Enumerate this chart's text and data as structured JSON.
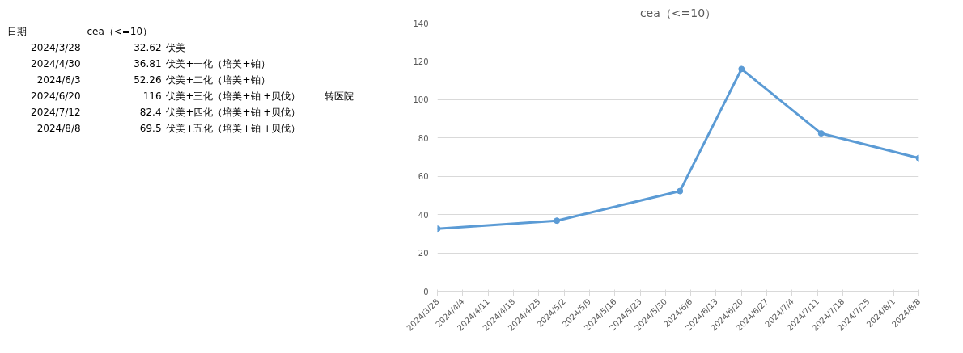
{
  "chart_data": [
    {
      "type": "other",
      "annotations": [
        "日期",
        "cea（<=10）",
        "2024/3/28",
        "32.62",
        "伏美",
        "2024/4/30",
        "36.81",
        "伏美+一化（培美+铂）",
        "2024/6/3",
        "52.26",
        "伏美+二化（培美+铂）",
        "2024/6/20",
        "116",
        "伏美+三化（培美+铂 +贝伐）",
        "转医院",
        "2024/7/12",
        "82.4",
        "伏美+四化（培美+铂 +贝伐）",
        "2024/8/8",
        "69.5",
        "伏美+五化（培美+铂 +贝伐）"
      ]
    },
    {
      "type": "line",
      "title": "cea（<=10）",
      "x": [
        "2024-03-28",
        "2024-04-30",
        "2024-06-03",
        "2024-06-20",
        "2024-07-12",
        "2024-08-08"
      ],
      "series": [
        {
          "color": "#5b9bd5",
          "values": [
            32.62,
            36.81,
            52.26,
            116,
            82.4,
            69.5
          ]
        }
      ],
      "marker": "circle",
      "line_style": "solid",
      "grid": "y",
      "ylim": [
        0,
        140
      ],
      "yticks": [
        0,
        20,
        40,
        60,
        80,
        100,
        120,
        140
      ],
      "xlim": [
        "2024-03-28",
        "2024-08-08"
      ],
      "xticks": [
        {
          "value": "2024-03-28",
          "label": "2024/3/28"
        },
        {
          "value": "2024-04-04",
          "label": "2024/4/4"
        },
        {
          "value": "2024-04-11",
          "label": "2024/4/11"
        },
        {
          "value": "2024-04-18",
          "label": "2024/4/18"
        },
        {
          "value": "2024-04-25",
          "label": "2024/4/25"
        },
        {
          "value": "2024-05-02",
          "label": "2024/5/2"
        },
        {
          "value": "2024-05-09",
          "label": "2024/5/9"
        },
        {
          "value": "2024-05-16",
          "label": "2024/5/16"
        },
        {
          "value": "2024-05-23",
          "label": "2024/5/23"
        },
        {
          "value": "2024-05-30",
          "label": "2024/5/30"
        },
        {
          "value": "2024-06-06",
          "label": "2024/6/6"
        },
        {
          "value": "2024-06-13",
          "label": "2024/6/13"
        },
        {
          "value": "2024-06-20",
          "label": "2024/6/20"
        },
        {
          "value": "2024-06-27",
          "label": "2024/6/27"
        },
        {
          "value": "2024-07-04",
          "label": "2024/7/4"
        },
        {
          "value": "2024-07-11",
          "label": "2024/7/11"
        },
        {
          "value": "2024-07-18",
          "label": "2024/7/18"
        },
        {
          "value": "2024-07-25",
          "label": "2024/7/25"
        },
        {
          "value": "2024-08-01",
          "label": "2024/8/1"
        },
        {
          "value": "2024-08-08",
          "label": "2024/8/8"
        }
      ]
    }
  ]
}
